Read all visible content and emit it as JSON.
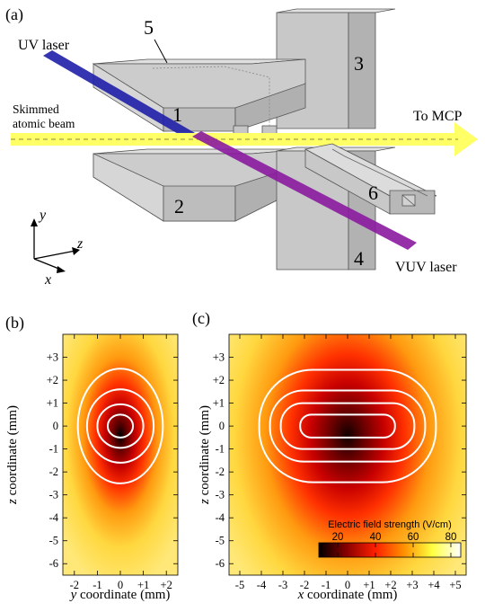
{
  "panel_a": {
    "panel_label": "(a)",
    "uv_laser": "UV laser",
    "vuv_laser": "VUV laser",
    "beam_line1": "Skimmed",
    "beam_line2": "atomic beam",
    "to_mcp": "To MCP",
    "electrodes": [
      "1",
      "2",
      "3",
      "4",
      "5",
      "6"
    ],
    "axes": {
      "y": "y",
      "z": "z",
      "x": "x"
    },
    "colors": {
      "uv": "#1f1fa8",
      "vuv": "#8a1a9e",
      "beam": "#ffff66",
      "block": "#c8c8c8"
    }
  },
  "colorbar": {
    "title": "Electric field strength (V/cm)",
    "ticks": [
      "20",
      "40",
      "60",
      "80"
    ],
    "colors": [
      "#000000",
      "#8b0000",
      "#ff2000",
      "#ff9000",
      "#ffff40",
      "#ffffff"
    ]
  },
  "chart_data": [
    {
      "type": "heatmap",
      "panel_label": "(b)",
      "xlabel_var": "y",
      "xlabel_rest": " coordinate (mm)",
      "ylabel_var": "z",
      "ylabel_rest": " coordinate (mm)",
      "xlim": [
        -2.5,
        2.5
      ],
      "ylim": [
        -6.5,
        4
      ],
      "xticks": [
        -2,
        -1,
        0,
        1,
        2
      ],
      "xtick_labels": [
        "-2",
        "-1",
        "0",
        "+1",
        "+2"
      ],
      "yticks": [
        3,
        2,
        1,
        0,
        -1,
        -2,
        -3,
        -4,
        -5,
        -6
      ],
      "ytick_labels": [
        "+3",
        "+2",
        "+1",
        "0",
        "-1",
        "-2",
        "-3",
        "-4",
        "-5",
        "-6"
      ],
      "contours_mm": [
        {
          "cx": 0,
          "cz": 0,
          "rx": 0.55,
          "rz": 0.5
        },
        {
          "cx": 0,
          "cz": 0,
          "rx": 1.0,
          "rz": 0.95
        },
        {
          "cx": 0,
          "cz": 0,
          "rx": 1.45,
          "rz": 1.6
        },
        {
          "cx": 0,
          "cz": 0,
          "rx": 1.85,
          "rz": 2.5
        }
      ],
      "contour_levels_vcm": [
        20,
        40,
        60,
        80
      ]
    },
    {
      "type": "heatmap",
      "panel_label": "(c)",
      "xlabel_var": "x",
      "xlabel_rest": " coordinate (mm)",
      "ylabel_var": "z",
      "ylabel_rest": " coordinate (mm)",
      "xlim": [
        -5.5,
        5.5
      ],
      "ylim": [
        -6.5,
        4
      ],
      "xticks": [
        -5,
        -4,
        -3,
        -2,
        -1,
        0,
        1,
        2,
        3,
        4,
        5
      ],
      "xtick_labels": [
        "-5",
        "-4",
        "-3",
        "-2",
        "-1",
        "0",
        "+1",
        "+2",
        "+3",
        "+4",
        "+5"
      ],
      "yticks": [
        3,
        2,
        1,
        0,
        -1,
        -2,
        -3,
        -4,
        -5,
        -6
      ],
      "ytick_labels": [
        "+3",
        "+2",
        "+1",
        "0",
        "-1",
        "-2",
        "-3",
        "-4",
        "-5",
        "-6"
      ],
      "contours_mm": [
        {
          "cx": 0,
          "cz": 0,
          "rx": 2.2,
          "rz": 0.5
        },
        {
          "cx": 0,
          "cz": 0,
          "rx": 3.1,
          "rz": 1.0
        },
        {
          "cx": 0,
          "cz": 0,
          "rx": 3.6,
          "rz": 1.55
        },
        {
          "cx": 0,
          "cz": 0,
          "rx": 4.1,
          "rz": 2.45
        }
      ],
      "contour_levels_vcm": [
        20,
        40,
        60,
        80
      ]
    }
  ]
}
